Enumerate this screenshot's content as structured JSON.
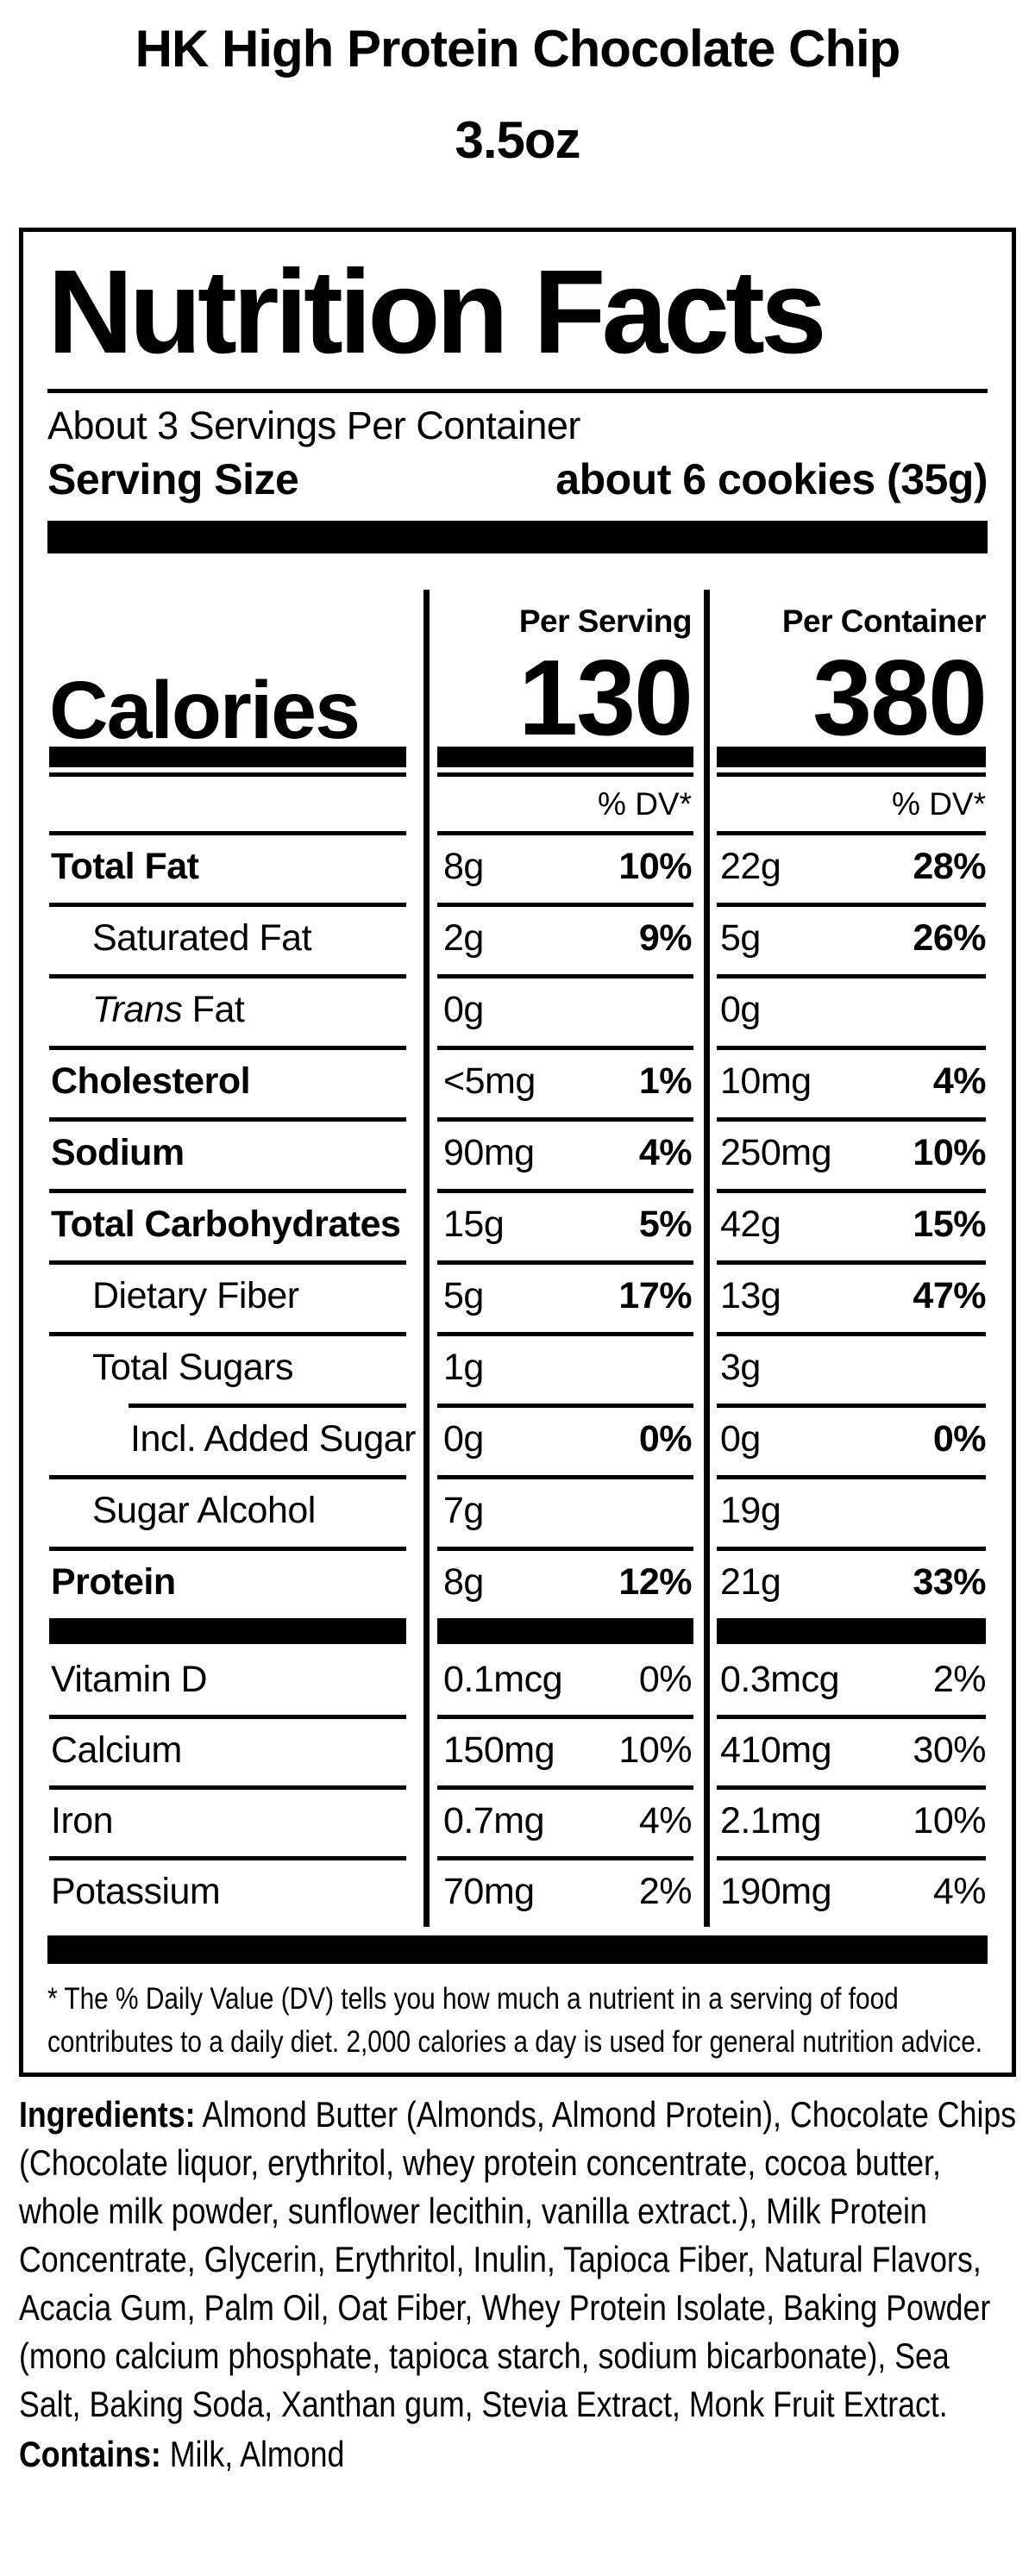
{
  "product": {
    "title_line1": "HK High Protein Chocolate Chip",
    "title_line2": "3.5oz"
  },
  "label": {
    "title": "Nutrition Facts",
    "servings_per_container": "About 3 Servings Per Container",
    "serving_size_label": "Serving Size",
    "serving_size_value": "about 6 cookies (35g)",
    "col_serving": "Per Serving",
    "col_container": "Per Container",
    "calories_label": "Calories",
    "calories_per_serving": "130",
    "calories_per_container": "380",
    "dv_header_serving": "% DV*",
    "dv_header_container": "% DV*",
    "rows": [
      {
        "label": "Total Fat",
        "s_amt": "8g",
        "s_pct": "10%",
        "c_amt": "22g",
        "c_pct": "28%"
      },
      {
        "label": "Saturated Fat",
        "s_amt": "2g",
        "s_pct": "9%",
        "c_amt": "5g",
        "c_pct": "26%"
      },
      {
        "label_italic": "Trans",
        "label": " Fat",
        "s_amt": "0g",
        "s_pct": "",
        "c_amt": "0g",
        "c_pct": ""
      },
      {
        "label": "Cholesterol",
        "s_amt": "<5mg",
        "s_pct": "1%",
        "c_amt": "10mg",
        "c_pct": "4%"
      },
      {
        "label": "Sodium",
        "s_amt": "90mg",
        "s_pct": "4%",
        "c_amt": "250mg",
        "c_pct": "10%"
      },
      {
        "label": "Total Carbohydrates",
        "s_amt": "15g",
        "s_pct": "5%",
        "c_amt": "42g",
        "c_pct": "15%"
      },
      {
        "label": "Dietary Fiber",
        "s_amt": "5g",
        "s_pct": "17%",
        "c_amt": "13g",
        "c_pct": "47%"
      },
      {
        "label": "Total Sugars",
        "s_amt": "1g",
        "s_pct": "",
        "c_amt": "3g",
        "c_pct": ""
      },
      {
        "label": "Incl. Added Sugar",
        "s_amt": "0g",
        "s_pct": "0%",
        "c_amt": "0g",
        "c_pct": "0%"
      },
      {
        "label": "Sugar Alcohol",
        "s_amt": "7g",
        "s_pct": "",
        "c_amt": "19g",
        "c_pct": ""
      },
      {
        "label": "Protein",
        "s_amt": "8g",
        "s_pct": "12%",
        "c_amt": "21g",
        "c_pct": "33%"
      }
    ],
    "vitamin_rows": [
      {
        "label": "Vitamin D",
        "s_amt": "0.1mcg",
        "s_pct": "0%",
        "c_amt": "0.3mcg",
        "c_pct": "2%"
      },
      {
        "label": "Calcium",
        "s_amt": "150mg",
        "s_pct": "10%",
        "c_amt": "410mg",
        "c_pct": "30%"
      },
      {
        "label": "Iron",
        "s_amt": "0.7mg",
        "s_pct": "4%",
        "c_amt": "2.1mg",
        "c_pct": "10%"
      },
      {
        "label": "Potassium",
        "s_amt": "70mg",
        "s_pct": "2%",
        "c_amt": "190mg",
        "c_pct": "4%"
      }
    ],
    "footnote": "* The % Daily Value (DV) tells you how much a nutrient in a serving of food contributes to a daily diet. 2,000 calories a day is used for general nutrition advice."
  },
  "ingredients": {
    "label": "Ingredients:",
    "text": " Almond Butter (Almonds, Almond Protein), Chocolate Chips (Chocolate liquor, erythritol, whey protein concentrate, cocoa butter, whole milk powder, sunflower lecithin, vanilla extract.), Milk Protein Concentrate, Glycerin, Erythritol, Inulin, Tapioca Fiber, Natural Flavors, Acacia Gum, Palm Oil, Oat Fiber, Whey Protein Isolate, Baking Powder (mono calcium phosphate, tapioca starch, sodium bicarbonate), Sea Salt, Baking Soda, Xanthan gum, Stevia Extract, Monk Fruit Extract."
  },
  "contains": {
    "label": "Contains:",
    "text": " Milk, Almond"
  }
}
